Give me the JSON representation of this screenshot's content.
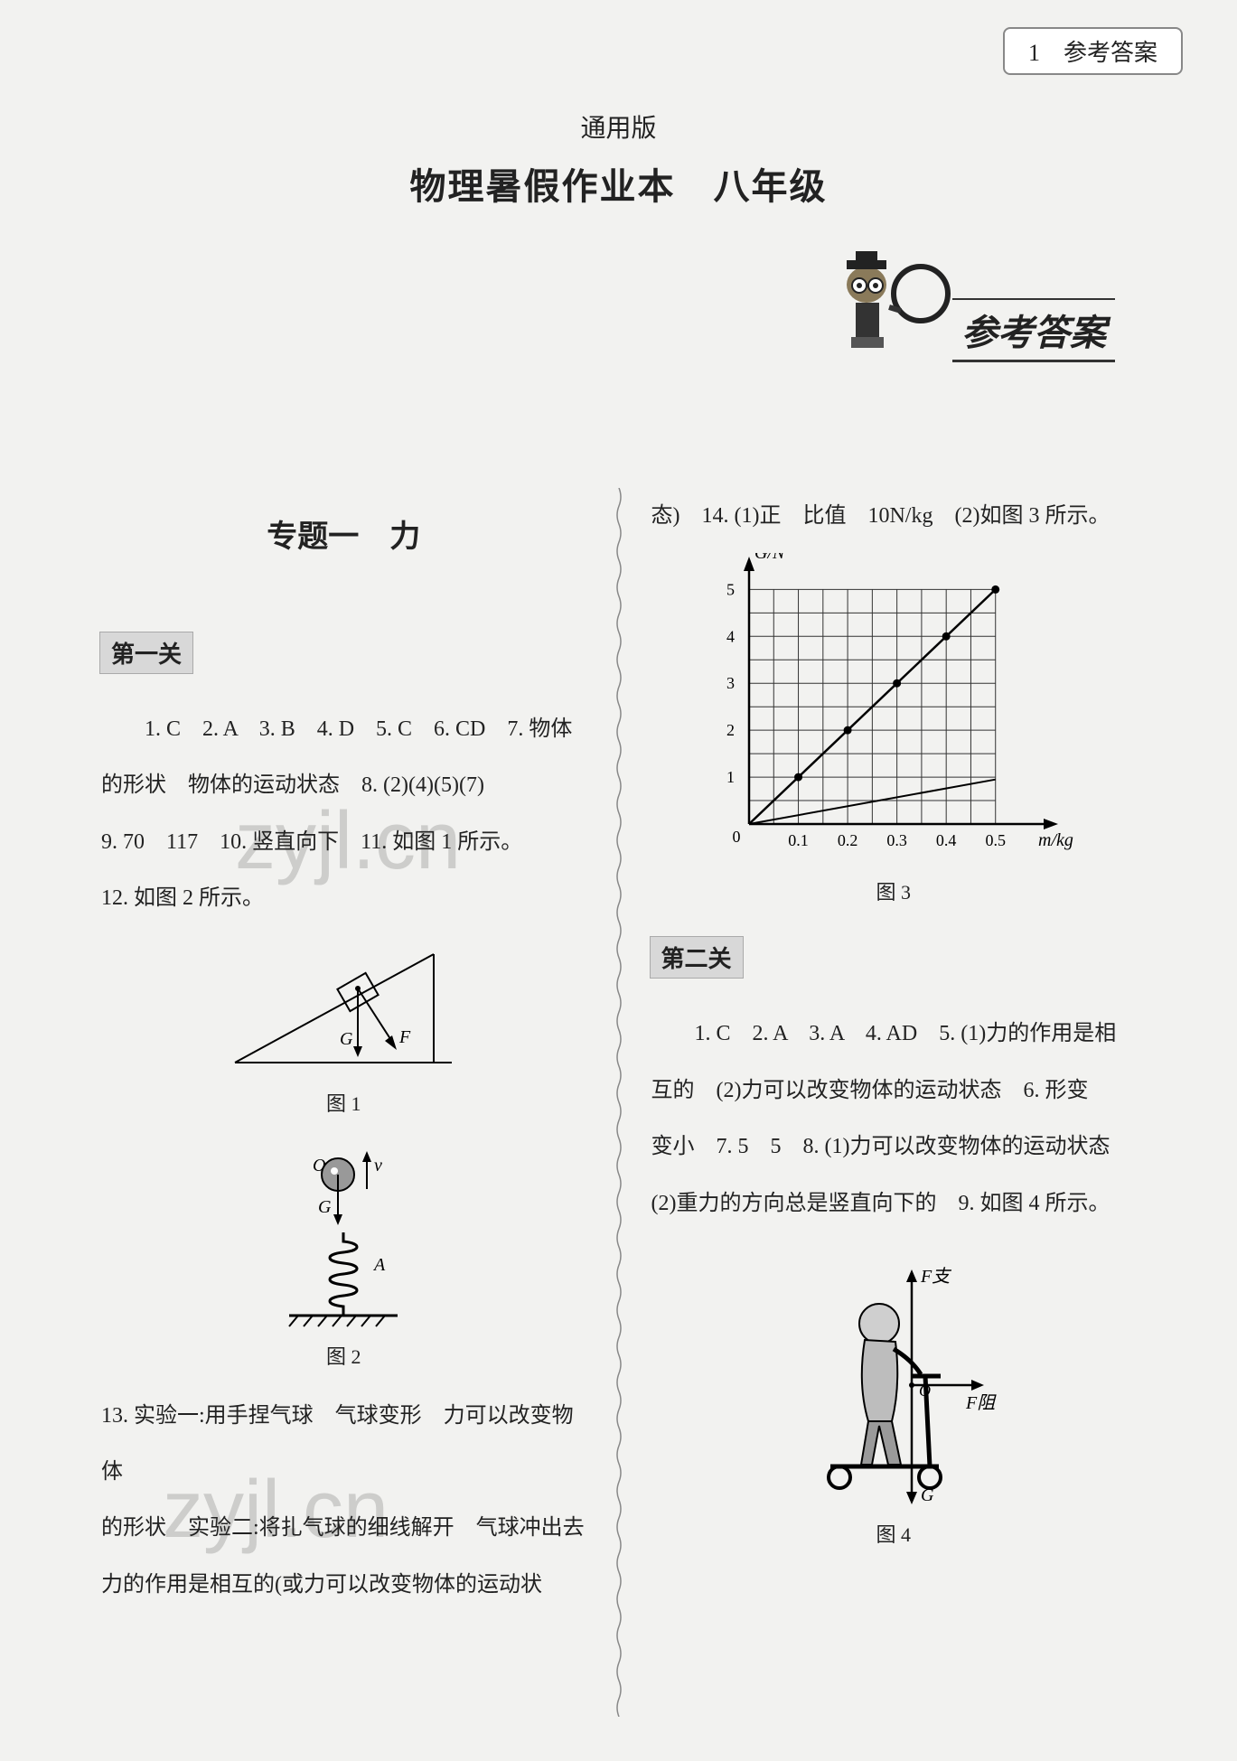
{
  "header": {
    "page_corner": "1　参考答案",
    "version": "通用版",
    "title": "物理暑假作业本　八年级",
    "banner": "参考答案"
  },
  "watermarks": {
    "w1": "zyjl.cn",
    "w2": "zyjl.cn"
  },
  "left_col": {
    "topic": "专题一　力",
    "level1": "第一关",
    "line1": "1. C　2. A　3. B　4. D　5. C　6. CD　7. 物体",
    "line2": "的形状　物体的运动状态　8. (2)(4)(5)(7)",
    "line3": "9. 70　117　10. 竖直向下　11. 如图 1 所示。",
    "line4": "12. 如图 2 所示。",
    "fig1": {
      "caption": "图 1",
      "labels": {
        "G": "G",
        "F": "F"
      }
    },
    "fig2": {
      "caption": "图 2",
      "labels": {
        "O": "O",
        "v": "v",
        "G": "G",
        "A": "A"
      }
    },
    "line5": "13. 实验一:用手捏气球　气球变形　力可以改变物体",
    "line6": "的形状　实验二:将扎气球的细线解开　气球冲出去",
    "line7": "力的作用是相互的(或力可以改变物体的运动状"
  },
  "right_col": {
    "line0": "态)　14. (1)正　比值　10N/kg　(2)如图 3 所示。",
    "fig3": {
      "caption": "图 3",
      "ylabel": "G/N",
      "xlabel": "m/kg",
      "xticks": [
        "0.1",
        "0.2",
        "0.3",
        "0.4",
        "0.5"
      ],
      "yticks": [
        "1",
        "2",
        "3",
        "4",
        "5"
      ],
      "xlim": [
        0,
        0.55
      ],
      "ylim": [
        0,
        5.2
      ],
      "grid_color": "#333",
      "line_main": {
        "points": [
          [
            0,
            0
          ],
          [
            0.5,
            5
          ]
        ],
        "color": "#000",
        "width": 2.5
      },
      "line_aux": {
        "points": [
          [
            0,
            0
          ],
          [
            0.5,
            0.95
          ]
        ],
        "color": "#000",
        "width": 2
      },
      "markers": {
        "type": "circle",
        "points": [
          [
            0.1,
            1
          ],
          [
            0.2,
            2
          ],
          [
            0.3,
            3
          ],
          [
            0.4,
            4
          ],
          [
            0.5,
            5
          ]
        ],
        "color": "#000"
      },
      "background": "#ffffff"
    },
    "level2": "第二关",
    "line1": "1. C　2. A　3. A　4. AD　5. (1)力的作用是相",
    "line2": "互的　(2)力可以改变物体的运动状态　6. 形变",
    "line3": "变小　7. 5　5　8. (1)力可以改变物体的运动状态",
    "line4": "(2)重力的方向总是竖直向下的　9. 如图 4 所示。",
    "fig4": {
      "caption": "图 4",
      "labels": {
        "Fz": "F支",
        "Fzu": "F阻",
        "G": "G",
        "O": "O"
      }
    }
  }
}
